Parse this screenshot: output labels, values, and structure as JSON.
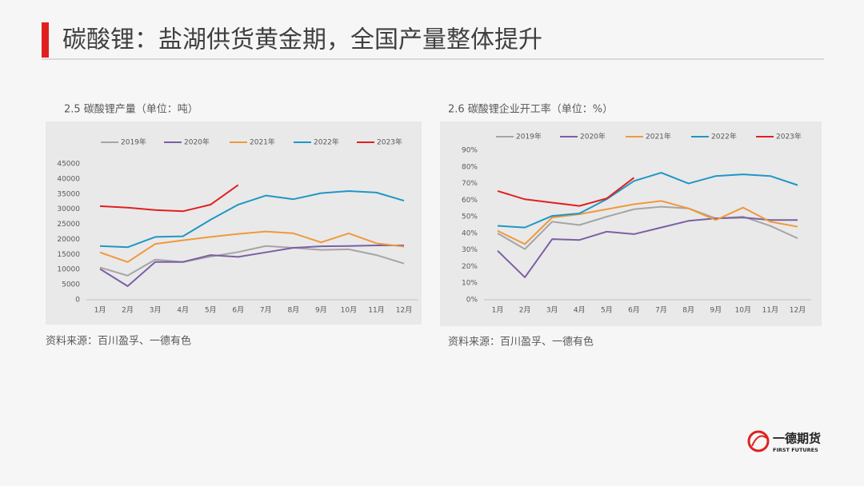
{
  "header": {
    "title": "碳酸锂：盐湖供货黄金期，全国产量整体提升"
  },
  "chart_data": [
    {
      "type": "line",
      "title": "2.5 碳酸锂产量（单位：吨）",
      "source": "资料来源：百川盈孚、一德有色",
      "categories": [
        "1月",
        "2月",
        "3月",
        "4月",
        "5月",
        "6月",
        "7月",
        "8月",
        "9月",
        "10月",
        "11月",
        "12月"
      ],
      "ylim": [
        0,
        45000
      ],
      "yticks": [
        0,
        5000,
        10000,
        15000,
        20000,
        25000,
        30000,
        35000,
        40000,
        45000
      ],
      "grid": false,
      "series": [
        {
          "name": "2019年",
          "color": "#a5a5a5",
          "values": [
            10700,
            8000,
            13300,
            12500,
            14300,
            15800,
            17800,
            17200,
            16500,
            16700,
            14800,
            12000
          ]
        },
        {
          "name": "2020年",
          "color": "#7b5fa6",
          "values": [
            10200,
            4500,
            12500,
            12500,
            14800,
            14200,
            15700,
            17200,
            17700,
            17800,
            18000,
            18000
          ]
        },
        {
          "name": "2021年",
          "color": "#f0993c",
          "values": [
            15700,
            12500,
            18500,
            19700,
            20800,
            21800,
            22600,
            22000,
            19000,
            22000,
            18700,
            17600
          ]
        },
        {
          "name": "2022年",
          "color": "#1f97c4",
          "values": [
            17800,
            17400,
            20800,
            21000,
            26500,
            31500,
            34500,
            33300,
            35300,
            36000,
            35500,
            32800
          ]
        },
        {
          "name": "2023年",
          "color": "#e0201f",
          "values": [
            31000,
            30500,
            29700,
            29300,
            31500,
            38000,
            null,
            null,
            null,
            null,
            null,
            null
          ]
        }
      ]
    },
    {
      "type": "line",
      "title": "2.6 碳酸锂企业开工率（单位：%）",
      "source": "资料来源：百川盈孚、一德有色",
      "categories": [
        "1月",
        "2月",
        "3月",
        "4月",
        "5月",
        "6月",
        "7月",
        "8月",
        "9月",
        "10月",
        "11月",
        "12月"
      ],
      "ylim": [
        0,
        90
      ],
      "yticks": [
        {
          "value": 0,
          "label": "0%"
        },
        {
          "value": 10,
          "label": "10%"
        },
        {
          "value": 20,
          "label": "20%"
        },
        {
          "value": 30,
          "label": "30%"
        },
        {
          "value": 40,
          "label": "40%"
        },
        {
          "value": 50,
          "label": "50%"
        },
        {
          "value": 60,
          "label": "60%"
        },
        {
          "value": 70,
          "label": "70%"
        },
        {
          "value": 80,
          "label": "80%"
        },
        {
          "value": 90,
          "label": "90%"
        }
      ],
      "grid": false,
      "series": [
        {
          "name": "2019年",
          "color": "#a5a5a5",
          "values": [
            40,
            30.5,
            47,
            45,
            50,
            54.5,
            56,
            55,
            49,
            50,
            44.5,
            37
          ]
        },
        {
          "name": "2020年",
          "color": "#7b5fa6",
          "values": [
            29.5,
            13.5,
            36.5,
            36,
            41,
            39.5,
            43.5,
            47.5,
            49,
            49.5,
            48,
            48
          ]
        },
        {
          "name": "2021年",
          "color": "#f0993c",
          "values": [
            41.5,
            33.5,
            49.5,
            51.5,
            54.5,
            57.5,
            59.5,
            55,
            48,
            55.5,
            47,
            44
          ]
        },
        {
          "name": "2022年",
          "color": "#1f97c4",
          "values": [
            44.5,
            43.5,
            50.5,
            52,
            60.5,
            71.5,
            76.5,
            70,
            74.5,
            75.5,
            74.5,
            69
          ]
        },
        {
          "name": "2023年",
          "color": "#e0201f",
          "values": [
            65.5,
            60.5,
            58.5,
            56.5,
            61,
            73.5,
            null,
            null,
            null,
            null,
            null,
            null
          ]
        }
      ]
    }
  ],
  "logo": {
    "name": "一德期货",
    "subtitle": "FIRST FUTURES"
  }
}
